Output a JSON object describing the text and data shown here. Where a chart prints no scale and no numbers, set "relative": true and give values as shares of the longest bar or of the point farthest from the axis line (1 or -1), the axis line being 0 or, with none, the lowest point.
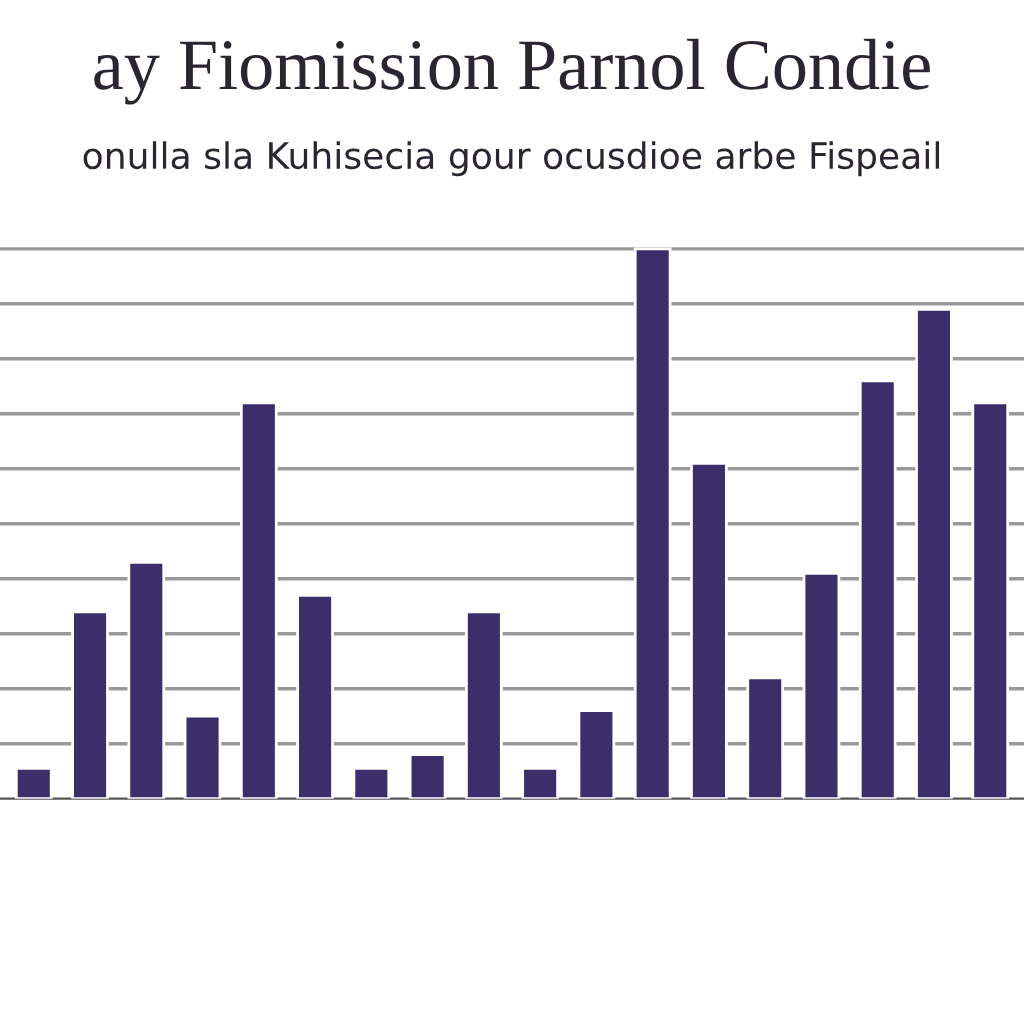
{
  "chart_data": {
    "type": "bar",
    "title": "ay Fiomission Parnol Condie",
    "subtitle": "onulla sla Kuhisecia gour ocusdioe arbe Fispeail",
    "categories": [
      null,
      null,
      null,
      null,
      null,
      null,
      null,
      null,
      null,
      null,
      null,
      null,
      null,
      null,
      null,
      null,
      null,
      null
    ],
    "values": [
      0.055,
      0.34,
      0.43,
      0.15,
      0.72,
      0.37,
      0.055,
      0.08,
      0.34,
      0.055,
      0.16,
      1,
      0.61,
      0.22,
      0.41,
      0.76,
      0.89,
      0.72
    ],
    "color": "#3b2e6b",
    "relative": true,
    "grid": "y"
  }
}
